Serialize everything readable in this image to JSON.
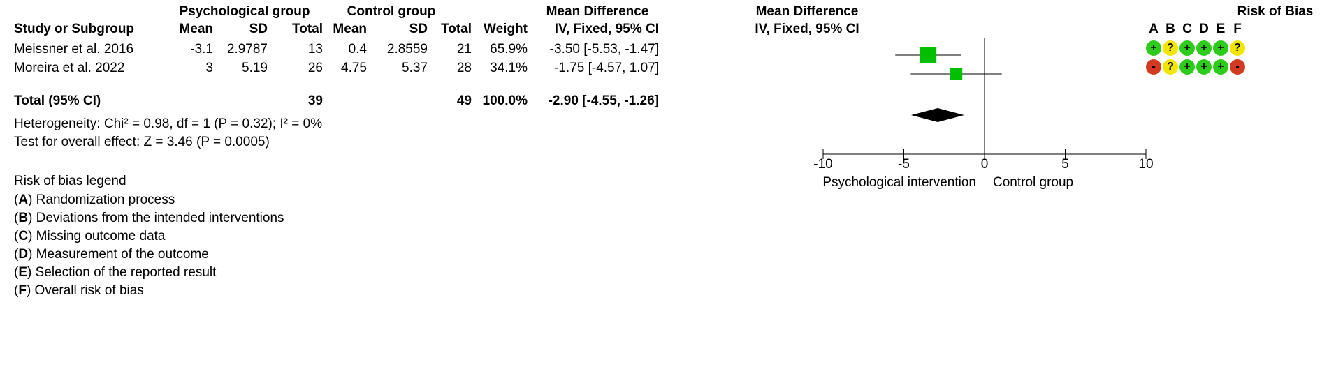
{
  "header": {
    "group1": "Psychological group",
    "group2": "Control group",
    "md_header": "Mean Difference",
    "md_plot_header": "Mean Difference",
    "rob_header": "Risk of Bias",
    "study_col": "Study or Subgroup",
    "mean1": "Mean",
    "sd1": "SD",
    "total1": "Total",
    "mean2": "Mean",
    "sd2": "SD",
    "total2": "Total",
    "weight": "Weight",
    "md_method": "IV, Fixed, 95% CI",
    "md_plot_method": "IV, Fixed, 95% CI",
    "rob_letters": [
      "A",
      "B",
      "C",
      "D",
      "E",
      "F"
    ]
  },
  "studies": [
    {
      "name": "Meissner et al. 2016",
      "mean1": "-3.1",
      "sd1": "2.9787",
      "total1": "13",
      "mean2": "0.4",
      "sd2": "2.8559",
      "total2": "21",
      "weight": "65.9%",
      "ci_text": "-3.50 [-5.53, -1.47]",
      "rob": [
        {
          "level": "low",
          "symbol": "+"
        },
        {
          "level": "some",
          "symbol": "?"
        },
        {
          "level": "low",
          "symbol": "+"
        },
        {
          "level": "low",
          "symbol": "+"
        },
        {
          "level": "low",
          "symbol": "+"
        },
        {
          "level": "some",
          "symbol": "?"
        }
      ]
    },
    {
      "name": "Moreira et al. 2022",
      "mean1": "3",
      "sd1": "5.19",
      "total1": "26",
      "mean2": "4.75",
      "sd2": "5.37",
      "total2": "28",
      "weight": "34.1%",
      "ci_text": "-1.75 [-4.57, 1.07]",
      "rob": [
        {
          "level": "high",
          "symbol": "-"
        },
        {
          "level": "some",
          "symbol": "?"
        },
        {
          "level": "low",
          "symbol": "+"
        },
        {
          "level": "low",
          "symbol": "+"
        },
        {
          "level": "low",
          "symbol": "+"
        },
        {
          "level": "high",
          "symbol": "-"
        }
      ]
    }
  ],
  "total": {
    "label": "Total (95% CI)",
    "total1": "39",
    "total2": "49",
    "weight": "100.0%",
    "ci_text": "-2.90 [-4.55, -1.26]"
  },
  "heterogeneity": "Heterogeneity: Chi² = 0.98, df = 1 (P = 0.32); I² = 0%",
  "overall_effect": "Test for overall effect: Z = 3.46 (P = 0.0005)",
  "legend": {
    "title": "Risk of bias legend",
    "items": [
      {
        "letter": "A",
        "text": " Randomization process"
      },
      {
        "letter": "B",
        "text": " Deviations from the intended interventions"
      },
      {
        "letter": "C",
        "text": " Missing outcome data"
      },
      {
        "letter": "D",
        "text": " Measurement of the outcome"
      },
      {
        "letter": "E",
        "text": " Selection of the reported result"
      },
      {
        "letter": "F",
        "text": " Overall risk of bias"
      }
    ]
  },
  "colors": {
    "study_marker": "#00c000",
    "diamond": "#000000",
    "rob_low": "#2ecc1a",
    "rob_some": "#f2e600",
    "rob_high": "#d23a22"
  },
  "chart_data": {
    "type": "forest",
    "xlim": [
      -10,
      10
    ],
    "ticks": [
      -10,
      -5,
      0,
      5,
      10
    ],
    "tick_labels": [
      "-10",
      "-5",
      "0",
      "5",
      "10"
    ],
    "xlabel_left": "Psychological intervention",
    "xlabel_right": "Control group",
    "studies": [
      {
        "name": "Meissner et al. 2016",
        "estimate": -3.5,
        "lower": -5.53,
        "upper": -1.47,
        "weight": 65.9
      },
      {
        "name": "Moreira et al. 2022",
        "estimate": -1.75,
        "lower": -4.57,
        "upper": 1.07,
        "weight": 34.1
      }
    ],
    "pooled": {
      "estimate": -2.9,
      "lower": -4.55,
      "upper": -1.26
    }
  }
}
